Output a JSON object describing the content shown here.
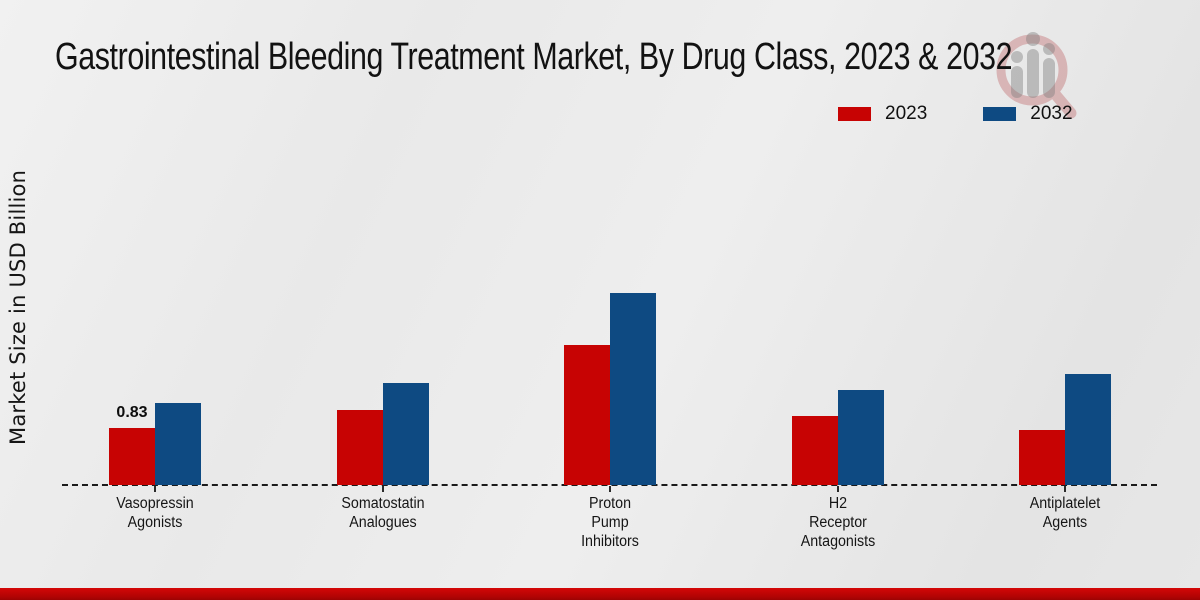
{
  "page": {
    "title": "Gastrointestinal Bleeding Treatment Market, By Drug Class, 2023 & 2032",
    "footer_color": "#b30404"
  },
  "chart_data": {
    "type": "bar",
    "title": "Gastrointestinal Bleeding Treatment Market, By Drug Class, 2023 & 2032",
    "ylabel": "Market Size in USD Billion",
    "xlabel": "",
    "ylim": [
      0,
      3
    ],
    "grid": false,
    "legend_position": "top-right",
    "baseline_style": "dashed",
    "categories": [
      "Vasopressin Agonists",
      "Somatostatin Analogues",
      "Proton Pump Inhibitors",
      "H2 Receptor Antagonists",
      "Antiplatelet Agents"
    ],
    "category_lines": [
      [
        "Vasopressin",
        "Agonists"
      ],
      [
        "Somatostatin",
        "Analogues"
      ],
      [
        "Proton",
        "Pump",
        "Inhibitors"
      ],
      [
        "H2",
        "Receptor",
        "Antagonists"
      ],
      [
        "Antiplatelet",
        "Agents"
      ]
    ],
    "series": [
      {
        "name": "2023",
        "color": "#c70303",
        "values": [
          0.83,
          1.09,
          2.04,
          1.0,
          0.8
        ],
        "labels": [
          "0.83",
          "",
          "",
          "",
          ""
        ]
      },
      {
        "name": "2032",
        "color": "#0e4a82",
        "values": [
          1.2,
          1.49,
          2.79,
          1.39,
          1.62
        ],
        "labels": [
          "",
          "",
          "",
          "",
          ""
        ]
      }
    ],
    "annotations": [
      {
        "text": "0.83",
        "category": "Vasopressin Agonists",
        "series": "2023"
      }
    ]
  },
  "icons": {
    "watermark": "magnifier-bar-chart-logo"
  }
}
